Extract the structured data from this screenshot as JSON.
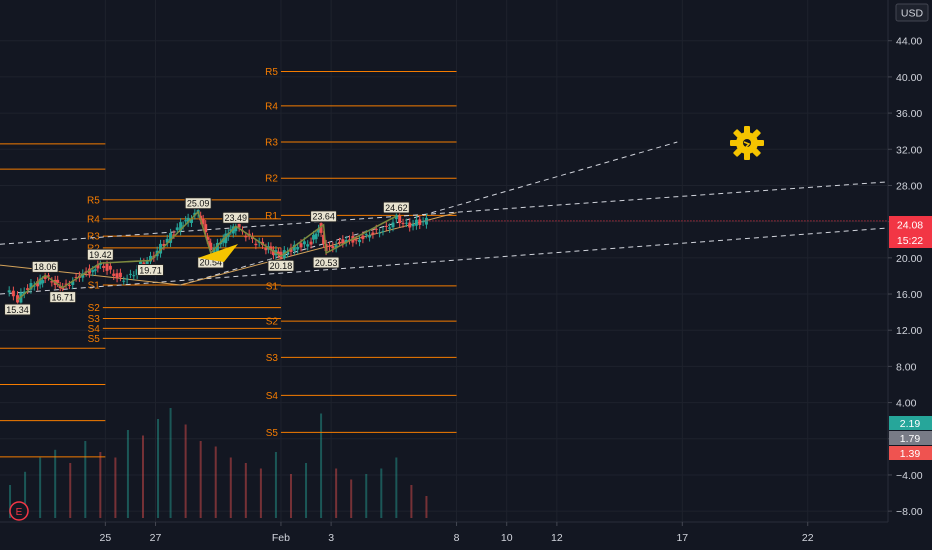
{
  "chart_data": {
    "type": "candlestick",
    "currency": "USD",
    "ylim": [
      -9.2,
      48.5
    ],
    "y_ticks": [
      44,
      40,
      36,
      32,
      28,
      24,
      20,
      16,
      12,
      8,
      4,
      0,
      -4,
      -8
    ],
    "y_tick_labels": [
      "44.00",
      "40.00",
      "36.00",
      "32.00",
      "28.00",
      "24.00",
      "20.00",
      "16.00",
      "12.00",
      "8.00",
      "4.00",
      "0.00",
      "−4.00",
      "−8.00"
    ],
    "x_ticks": [
      {
        "label": "25",
        "day": 24
      },
      {
        "label": "27",
        "day": 26
      },
      {
        "label": "Feb",
        "day": 31
      },
      {
        "label": "3",
        "day": 33
      },
      {
        "label": "8",
        "day": 38
      },
      {
        "label": "10",
        "day": 40
      },
      {
        "label": "12",
        "day": 42
      },
      {
        "label": "17",
        "day": 47
      },
      {
        "label": "22",
        "day": 52
      }
    ],
    "x_range": [
      19.8,
      55.2
    ],
    "last_price": {
      "value": 24.08,
      "label": "24.08",
      "countdown": "15:22"
    },
    "macd_labels": [
      {
        "label": "2.19",
        "color": "#26a69a"
      },
      {
        "label": "1.79",
        "color": "#787b86"
      },
      {
        "label": "1.39",
        "color": "#ef5350"
      }
    ],
    "zigzag_labels": [
      {
        "label": "15.34",
        "day": 20.5,
        "value": 15.34,
        "pos": "below"
      },
      {
        "label": "18.06",
        "day": 21.6,
        "value": 18.06,
        "pos": "above"
      },
      {
        "label": "16.71",
        "day": 22.3,
        "value": 16.71,
        "pos": "below"
      },
      {
        "label": "19.42",
        "day": 23.8,
        "value": 19.42,
        "pos": "above"
      },
      {
        "label": "19.71",
        "day": 25.8,
        "value": 19.71,
        "pos": "below"
      },
      {
        "label": "25.09",
        "day": 27.7,
        "value": 25.09,
        "pos": "above"
      },
      {
        "label": "20.54",
        "day": 28.2,
        "value": 20.54,
        "pos": "below"
      },
      {
        "label": "23.49",
        "day": 29.2,
        "value": 23.49,
        "pos": "above"
      },
      {
        "label": "20.18",
        "day": 31.0,
        "value": 20.18,
        "pos": "below"
      },
      {
        "label": "23.64",
        "day": 32.7,
        "value": 23.64,
        "pos": "above"
      },
      {
        "label": "20.53",
        "day": 32.8,
        "value": 20.53,
        "pos": "below"
      },
      {
        "label": "24.62",
        "day": 35.6,
        "value": 24.62,
        "pos": "above"
      }
    ],
    "pivots_left": [
      {
        "label": "R5",
        "value": 26.4
      },
      {
        "label": "R4",
        "value": 24.3
      },
      {
        "label": "R3",
        "value": 22.4
      },
      {
        "label": "R2",
        "value": 21.1
      },
      {
        "label": "S1",
        "value": 17.0
      },
      {
        "label": "S2",
        "value": 14.5
      },
      {
        "label": "S3",
        "value": 13.3
      },
      {
        "label": "S4",
        "value": 12.2
      },
      {
        "label": "S5",
        "value": 11.1
      }
    ],
    "pivots_right": [
      {
        "label": "R5",
        "value": 40.6
      },
      {
        "label": "R4",
        "value": 36.8
      },
      {
        "label": "R3",
        "value": 32.8
      },
      {
        "label": "R2",
        "value": 28.8
      },
      {
        "label": "R1",
        "value": 24.7
      },
      {
        "label": "S1",
        "value": 16.9
      },
      {
        "label": "S2",
        "value": 13.0
      },
      {
        "label": "S3",
        "value": 9.0
      },
      {
        "label": "S4",
        "value": 4.8
      },
      {
        "label": "S5",
        "value": 0.7
      }
    ],
    "far_left_levels": [
      32.6,
      29.8,
      10.0,
      6.0,
      2.0,
      -2.0
    ],
    "trend_lines": [
      {
        "from": [
          19.8,
          21.5
        ],
        "to": [
          55.2,
          28.4
        ],
        "dash": true
      },
      {
        "from": [
          19.8,
          16.0
        ],
        "to": [
          55.2,
          23.3
        ],
        "dash": true
      },
      {
        "from": [
          27.0,
          17.0
        ],
        "to": [
          46.8,
          32.8
        ],
        "dash": true
      },
      {
        "from": [
          19.8,
          19.2
        ],
        "to": [
          27.0,
          17.0
        ],
        "dash": false
      },
      {
        "from": [
          27.0,
          17.0
        ],
        "to": [
          38.0,
          25.0
        ],
        "dash": false
      }
    ],
    "current_day": 37,
    "close_series": [
      {
        "day": 20.0,
        "value": 16.4
      },
      {
        "day": 20.5,
        "value": 15.4
      },
      {
        "day": 20.9,
        "value": 16.8
      },
      {
        "day": 21.3,
        "value": 17.2
      },
      {
        "day": 21.6,
        "value": 18.0
      },
      {
        "day": 22.0,
        "value": 17.3
      },
      {
        "day": 22.3,
        "value": 16.8
      },
      {
        "day": 22.7,
        "value": 17.6
      },
      {
        "day": 23.1,
        "value": 18.4
      },
      {
        "day": 23.5,
        "value": 18.7
      },
      {
        "day": 23.8,
        "value": 19.4
      },
      {
        "day": 24.2,
        "value": 18.6
      },
      {
        "day": 24.6,
        "value": 17.7
      },
      {
        "day": 25.0,
        "value": 18.0
      },
      {
        "day": 25.4,
        "value": 19.3
      },
      {
        "day": 25.8,
        "value": 19.9
      },
      {
        "day": 26.2,
        "value": 21.2
      },
      {
        "day": 26.6,
        "value": 22.4
      },
      {
        "day": 27.0,
        "value": 23.6
      },
      {
        "day": 27.3,
        "value": 24.1
      },
      {
        "day": 27.7,
        "value": 25.0
      },
      {
        "day": 28.0,
        "value": 22.6
      },
      {
        "day": 28.2,
        "value": 20.7
      },
      {
        "day": 28.6,
        "value": 21.6
      },
      {
        "day": 28.9,
        "value": 22.7
      },
      {
        "day": 29.2,
        "value": 23.4
      },
      {
        "day": 29.6,
        "value": 22.4
      },
      {
        "day": 30.0,
        "value": 21.6
      },
      {
        "day": 30.4,
        "value": 21.1
      },
      {
        "day": 30.7,
        "value": 20.6
      },
      {
        "day": 31.0,
        "value": 20.3
      },
      {
        "day": 31.4,
        "value": 21.0
      },
      {
        "day": 31.8,
        "value": 21.5
      },
      {
        "day": 32.2,
        "value": 21.8
      },
      {
        "day": 32.5,
        "value": 23.5
      },
      {
        "day": 32.8,
        "value": 21.0
      },
      {
        "day": 33.2,
        "value": 21.6
      },
      {
        "day": 33.6,
        "value": 22.1
      },
      {
        "day": 34.0,
        "value": 22.0
      },
      {
        "day": 34.4,
        "value": 22.6
      },
      {
        "day": 34.8,
        "value": 23.0
      },
      {
        "day": 35.2,
        "value": 23.3
      },
      {
        "day": 35.6,
        "value": 24.5
      },
      {
        "day": 36.0,
        "value": 23.6
      },
      {
        "day": 36.4,
        "value": 23.9
      },
      {
        "day": 36.8,
        "value": 24.08
      }
    ],
    "volume_series": [
      {
        "day": 20.2,
        "value": 0.3
      },
      {
        "day": 20.8,
        "value": 0.42
      },
      {
        "day": 21.4,
        "value": 0.55
      },
      {
        "day": 22.0,
        "value": 0.62
      },
      {
        "day": 22.6,
        "value": 0.5
      },
      {
        "day": 23.2,
        "value": 0.7
      },
      {
        "day": 23.8,
        "value": 0.6
      },
      {
        "day": 24.4,
        "value": 0.55
      },
      {
        "day": 24.9,
        "value": 0.8
      },
      {
        "day": 25.5,
        "value": 0.75
      },
      {
        "day": 26.1,
        "value": 0.9
      },
      {
        "day": 26.6,
        "value": 1.0
      },
      {
        "day": 27.2,
        "value": 0.85
      },
      {
        "day": 27.8,
        "value": 0.7
      },
      {
        "day": 28.4,
        "value": 0.65
      },
      {
        "day": 29.0,
        "value": 0.55
      },
      {
        "day": 29.6,
        "value": 0.5
      },
      {
        "day": 30.2,
        "value": 0.45
      },
      {
        "day": 30.8,
        "value": 0.6
      },
      {
        "day": 31.4,
        "value": 0.4
      },
      {
        "day": 32.0,
        "value": 0.5
      },
      {
        "day": 32.6,
        "value": 0.95
      },
      {
        "day": 33.2,
        "value": 0.45
      },
      {
        "day": 33.8,
        "value": 0.35
      },
      {
        "day": 34.4,
        "value": 0.4
      },
      {
        "day": 35.0,
        "value": 0.45
      },
      {
        "day": 35.6,
        "value": 0.55
      },
      {
        "day": 36.2,
        "value": 0.3
      },
      {
        "day": 36.8,
        "value": 0.2
      }
    ]
  },
  "event_badge": "E",
  "colors": {
    "background": "#131722",
    "pivot": "#f57c00",
    "candle_up": "#26a69a",
    "candle_down": "#ef5350",
    "price_tag": "#f23645",
    "zigzag": "#7e8a3e",
    "trend": "#d1d4dc",
    "axis_text": "#d1d4dc"
  }
}
